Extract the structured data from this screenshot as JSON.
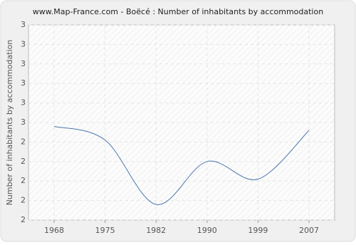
{
  "chart_data": {
    "type": "line",
    "title": "www.Map-France.com - Boëcé : Number of inhabitants by accommodation",
    "y_label": "Number of inhabitants by accommodation",
    "categories": [
      "1968",
      "1975",
      "1982",
      "1990",
      "1999",
      "2007"
    ],
    "values": [
      2.48,
      2.41,
      2.08,
      2.3,
      2.21,
      2.46
    ],
    "color": "#4a76ad",
    "ylim": [
      2,
      3
    ],
    "yticks": [
      {
        "value": 2,
        "label": "2"
      },
      {
        "value": 2.1,
        "label": "2"
      },
      {
        "value": 2.2,
        "label": "2"
      },
      {
        "value": 2.3,
        "label": "2"
      },
      {
        "value": 2.4,
        "label": "2"
      },
      {
        "value": 2.5,
        "label": "3"
      },
      {
        "value": 2.6,
        "label": "3"
      },
      {
        "value": 2.7,
        "label": "3"
      },
      {
        "value": 2.8,
        "label": "3"
      },
      {
        "value": 2.9,
        "label": "3"
      },
      {
        "value": 3,
        "label": "3"
      }
    ],
    "grid": true
  }
}
